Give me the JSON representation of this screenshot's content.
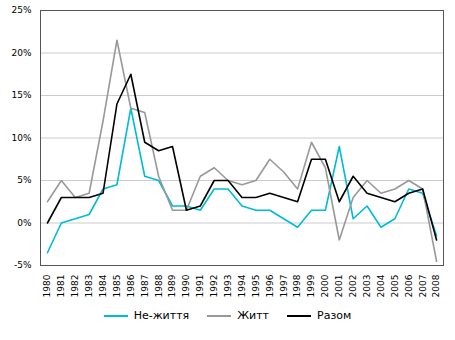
{
  "chart_data": {
    "type": "line",
    "x": [
      1980,
      1981,
      1982,
      1983,
      1984,
      1985,
      1986,
      1987,
      1988,
      1989,
      1990,
      1991,
      1992,
      1993,
      1994,
      1995,
      1996,
      1997,
      1998,
      1999,
      2000,
      2001,
      2002,
      2003,
      2004,
      2005,
      2006,
      2007,
      2008
    ],
    "series": [
      {
        "name": "Не-життя",
        "color": "#00bcd4",
        "values": [
          -3.5,
          0.0,
          0.5,
          1.0,
          4.0,
          4.5,
          13.5,
          5.5,
          5.0,
          2.0,
          2.0,
          1.5,
          4.0,
          4.0,
          2.0,
          1.5,
          1.5,
          0.5,
          -0.5,
          1.5,
          1.5,
          9.0,
          0.5,
          2.0,
          -0.5,
          0.5,
          4.0,
          3.5,
          -1.5
        ]
      },
      {
        "name": "Житт",
        "color": "#999999",
        "values": [
          2.5,
          5.0,
          3.0,
          3.5,
          12.0,
          21.5,
          13.5,
          13.0,
          5.5,
          1.5,
          1.5,
          5.5,
          6.5,
          5.0,
          4.5,
          5.0,
          7.5,
          6.0,
          4.0,
          9.5,
          6.5,
          -2.0,
          3.0,
          5.0,
          3.5,
          4.0,
          5.0,
          4.0,
          -4.5
        ]
      },
      {
        "name": "Разом",
        "color": "#000000",
        "values": [
          0.0,
          3.0,
          3.0,
          3.0,
          3.5,
          14.0,
          17.5,
          9.5,
          8.5,
          9.0,
          1.5,
          2.0,
          5.0,
          5.0,
          3.0,
          3.0,
          3.5,
          3.0,
          2.5,
          7.5,
          7.5,
          2.5,
          5.5,
          3.5,
          3.0,
          2.5,
          3.5,
          4.0,
          -2.0
        ]
      }
    ],
    "xlim": [
      1979.5,
      2008.5
    ],
    "xticks": [
      1980,
      1981,
      1982,
      1983,
      1984,
      1985,
      1986,
      1987,
      1988,
      1989,
      1990,
      1991,
      1992,
      1993,
      1994,
      1995,
      1996,
      1997,
      1998,
      1999,
      2000,
      2001,
      2002,
      2003,
      2004,
      2005,
      2006,
      2007,
      2008
    ],
    "ylim": [
      -5,
      25
    ],
    "yticks": [
      {
        "value": -5,
        "label": "-5%"
      },
      {
        "value": 0,
        "label": "0%"
      },
      {
        "value": 5,
        "label": "5%"
      },
      {
        "value": 10,
        "label": "10%"
      },
      {
        "value": 15,
        "label": "15%"
      },
      {
        "value": 20,
        "label": "20%"
      },
      {
        "value": 25,
        "label": "25%"
      }
    ],
    "grid": true,
    "legend": "bottom"
  }
}
